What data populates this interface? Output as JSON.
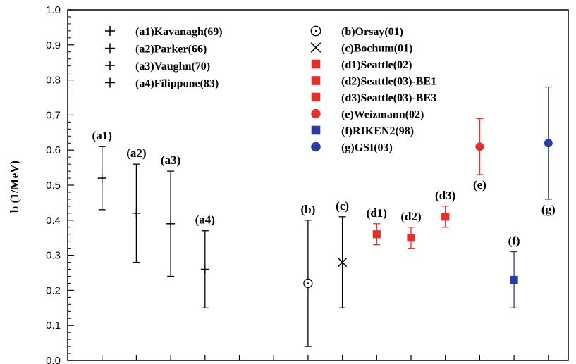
{
  "chart_data": {
    "type": "scatter",
    "title": "",
    "xlabel": "",
    "ylabel": "b (1/MeV)",
    "ylim": [
      0.0,
      1.0
    ],
    "yticks": [
      "0.0",
      "0.1",
      "0.2",
      "0.3",
      "0.4",
      "0.5",
      "0.6",
      "0.7",
      "0.8",
      "0.9",
      "1.0"
    ],
    "grid": false,
    "legend_position": "top",
    "colors": {
      "black": "#000000",
      "red": "#e0302a",
      "blue": "#2b3a9e"
    },
    "points": [
      {
        "label": "(a1)",
        "x": 1,
        "y": 0.52,
        "yerr_low": 0.43,
        "yerr_high": 0.61,
        "marker": "plus",
        "color": "#000000"
      },
      {
        "label": "(a2)",
        "x": 2,
        "y": 0.42,
        "yerr_low": 0.28,
        "yerr_high": 0.56,
        "marker": "plus",
        "color": "#000000"
      },
      {
        "label": "(a3)",
        "x": 3,
        "y": 0.39,
        "yerr_low": 0.24,
        "yerr_high": 0.54,
        "marker": "plus",
        "color": "#000000"
      },
      {
        "label": "(a4)",
        "x": 4,
        "y": 0.26,
        "yerr_low": 0.15,
        "yerr_high": 0.37,
        "marker": "plus",
        "color": "#000000"
      },
      {
        "label": "(b)",
        "x": 7,
        "y": 0.22,
        "yerr_low": 0.04,
        "yerr_high": 0.4,
        "marker": "circle-open",
        "color": "#000000"
      },
      {
        "label": "(c)",
        "x": 8,
        "y": 0.28,
        "yerr_low": 0.15,
        "yerr_high": 0.41,
        "marker": "cross",
        "color": "#000000"
      },
      {
        "label": "(d1)",
        "x": 9,
        "y": 0.36,
        "yerr_low": 0.33,
        "yerr_high": 0.39,
        "marker": "square",
        "color": "#e0302a"
      },
      {
        "label": "(d2)",
        "x": 10,
        "y": 0.35,
        "yerr_low": 0.32,
        "yerr_high": 0.38,
        "marker": "square",
        "color": "#e0302a"
      },
      {
        "label": "(d3)",
        "x": 11,
        "y": 0.41,
        "yerr_low": 0.38,
        "yerr_high": 0.44,
        "marker": "square",
        "color": "#e0302a"
      },
      {
        "label": "(e)",
        "x": 12,
        "y": 0.61,
        "yerr_low": 0.53,
        "yerr_high": 0.69,
        "marker": "circle",
        "color": "#e0302a"
      },
      {
        "label": "(f)",
        "x": 13,
        "y": 0.23,
        "yerr_low": 0.15,
        "yerr_high": 0.31,
        "marker": "square",
        "color": "#2b3a9e"
      },
      {
        "label": "(g)",
        "x": 14,
        "y": 0.62,
        "yerr_low": 0.46,
        "yerr_high": 0.78,
        "marker": "circle",
        "color": "#2b3a9e"
      }
    ],
    "legend": [
      {
        "text": "(a1)Kavanagh(69)",
        "marker": "plus",
        "color": "#000000"
      },
      {
        "text": "(a2)Parker(66)",
        "marker": "plus",
        "color": "#000000"
      },
      {
        "text": "(a3)Vaughn(70)",
        "marker": "plus",
        "color": "#000000"
      },
      {
        "text": "(a4)Filippone(83)",
        "marker": "plus",
        "color": "#000000"
      },
      {
        "text": "(b)Orsay(01)",
        "marker": "circle-open",
        "color": "#000000"
      },
      {
        "text": "(c)Bochum(01)",
        "marker": "cross",
        "color": "#000000"
      },
      {
        "text": "(d1)Seattle(02)",
        "marker": "square",
        "color": "#e0302a"
      },
      {
        "text": "(d2)Seattle(03)-BE1",
        "marker": "square",
        "color": "#e0302a"
      },
      {
        "text": "(d3)Seattle(03)-BE3",
        "marker": "square",
        "color": "#e0302a"
      },
      {
        "text": "(e)Weizmann(02)",
        "marker": "circle",
        "color": "#e0302a"
      },
      {
        "text": "(f)RIKEN2(98)",
        "marker": "square",
        "color": "#2b3a9e"
      },
      {
        "text": "(g)GSI(03)",
        "marker": "circle",
        "color": "#2b3a9e"
      }
    ]
  }
}
